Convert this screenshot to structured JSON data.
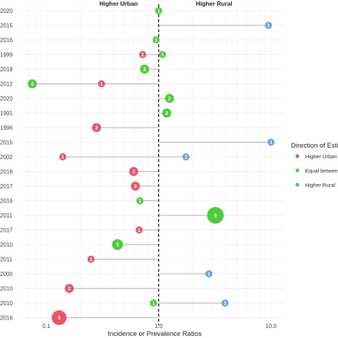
{
  "chart_data": {
    "type": "scatter",
    "xlabel": "Incidence or Prevalence Ratios",
    "x_scale": "log",
    "xlim": [
      0.06,
      13
    ],
    "x_ticks": [
      {
        "value": 0.1,
        "label": "0.1"
      },
      {
        "value": 1.0,
        "label": "1.0"
      },
      {
        "value": 10.0,
        "label": "10.0"
      }
    ],
    "reference_line": 1,
    "region_labels": {
      "left": "Higher Urban",
      "right": "Higher Rural"
    },
    "legend": {
      "title": "Direction of Esti",
      "placement": "right",
      "items": [
        {
          "key": "urban",
          "label": "Higher Urban",
          "color": "#e8566b"
        },
        {
          "key": "equal",
          "label": "Equal betwee",
          "color": "#4ccd3a"
        },
        {
          "key": "rural",
          "label": "Higher Rural",
          "color": "#6fa0dc"
        }
      ]
    },
    "grid": true,
    "points": [
      {
        "year": "2020",
        "value": 1.0,
        "n": "1",
        "group": "equal"
      },
      {
        "year": "2015",
        "value": 9.5,
        "n": "1",
        "group": "rural"
      },
      {
        "year": "2016",
        "value": 0.95,
        "n": "1",
        "group": "equal"
      },
      {
        "year": "1999",
        "value": 0.72,
        "n": "1",
        "group": "urban"
      },
      {
        "year": "1999",
        "value": 1.08,
        "n": "1",
        "group": "equal"
      },
      {
        "year": "2018",
        "value": 0.75,
        "n": "2",
        "group": "equal"
      },
      {
        "year": "2012",
        "value": 0.075,
        "n": "2",
        "group": "equal"
      },
      {
        "year": "2012",
        "value": 0.31,
        "n": "1",
        "group": "urban"
      },
      {
        "year": "2020",
        "value": 1.25,
        "n": "2",
        "group": "equal"
      },
      {
        "year": "1991",
        "value": 1.18,
        "n": "2",
        "group": "equal"
      },
      {
        "year": "1996",
        "value": 0.28,
        "n": "2",
        "group": "urban"
      },
      {
        "year": "2015",
        "value": 10.0,
        "n": "1",
        "group": "rural"
      },
      {
        "year": "2002",
        "value": 0.14,
        "n": "1",
        "group": "urban"
      },
      {
        "year": "2002",
        "value": 1.75,
        "n": "1",
        "group": "rural"
      },
      {
        "year": "2016",
        "value": 0.6,
        "n": "2",
        "group": "urban"
      },
      {
        "year": "2017",
        "value": 0.62,
        "n": "2",
        "group": "urban"
      },
      {
        "year": "2016",
        "value": 0.68,
        "n": "1",
        "group": "equal"
      },
      {
        "year": "2011",
        "value": 3.2,
        "n": "6",
        "group": "equal"
      },
      {
        "year": "2017",
        "value": 0.67,
        "n": "1",
        "group": "urban"
      },
      {
        "year": "2010",
        "value": 0.43,
        "n": "3",
        "group": "equal"
      },
      {
        "year": "2011",
        "value": 0.25,
        "n": "1",
        "group": "urban"
      },
      {
        "year": "2000",
        "value": 2.8,
        "n": "1",
        "group": "rural"
      },
      {
        "year": "2010",
        "value": 0.16,
        "n": "2",
        "group": "urban"
      },
      {
        "year": "2010",
        "value": 0.9,
        "n": "1",
        "group": "equal"
      },
      {
        "year": "2010",
        "value": 3.9,
        "n": "1",
        "group": "rural"
      },
      {
        "year": "2016",
        "value": 0.13,
        "n": "5",
        "group": "urban"
      }
    ],
    "rows": [
      {
        "year": "2020",
        "points": [
          0
        ]
      },
      {
        "year": "2015",
        "points": [
          1
        ]
      },
      {
        "year": "2016",
        "points": [
          2
        ]
      },
      {
        "year": "1999",
        "points": [
          3,
          4
        ]
      },
      {
        "year": "2018",
        "points": [
          5
        ]
      },
      {
        "year": "2012",
        "points": [
          6,
          7
        ]
      },
      {
        "year": "2020",
        "points": [
          8
        ]
      },
      {
        "year": "1991",
        "points": [
          9
        ]
      },
      {
        "year": "1996",
        "points": [
          10
        ]
      },
      {
        "year": "2015",
        "points": [
          11
        ]
      },
      {
        "year": "2002",
        "points": [
          12,
          13
        ]
      },
      {
        "year": "2016",
        "points": [
          14
        ]
      },
      {
        "year": "2017",
        "points": [
          15
        ]
      },
      {
        "year": "2016",
        "points": [
          16
        ]
      },
      {
        "year": "2011",
        "points": [
          17
        ]
      },
      {
        "year": "2017",
        "points": [
          18
        ]
      },
      {
        "year": "2010",
        "points": [
          19
        ]
      },
      {
        "year": "2011",
        "points": [
          20
        ]
      },
      {
        "year": "2000",
        "points": [
          21
        ]
      },
      {
        "year": "2010",
        "points": [
          22
        ]
      },
      {
        "year": "2010",
        "points": [
          23,
          24
        ]
      },
      {
        "year": "2016",
        "points": [
          25
        ]
      }
    ]
  }
}
